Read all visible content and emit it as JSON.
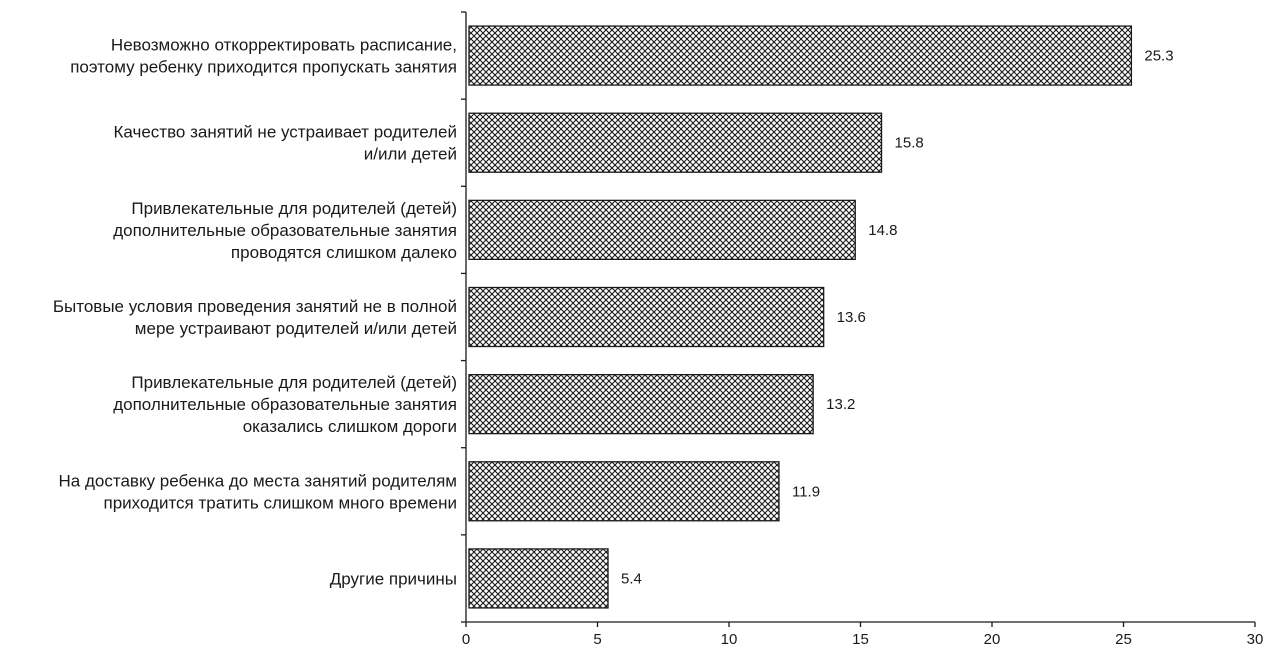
{
  "chart_data": {
    "type": "bar",
    "orientation": "horizontal",
    "categories": [
      [
        "Невозможно откорректировать расписание,",
        "поэтому ребенку приходится пропускать занятия"
      ],
      [
        "Качество занятий не устраивает родителей",
        "и/или детей"
      ],
      [
        "Привлекательные для родителей (детей)",
        "дополнительные образовательные занятия",
        "проводятся слишком далеко"
      ],
      [
        "Бытовые условия проведения занятий не в полной",
        "мере устраивают родителей и/или детей"
      ],
      [
        "Привлекательные для родителей (детей)",
        "дополнительные образовательные занятия",
        "оказались слишком дороги"
      ],
      [
        "На доставку ребенка до места занятий родителям",
        "приходится тратить слишком много времени"
      ],
      [
        "Другие причины"
      ]
    ],
    "values": [
      25.3,
      15.8,
      14.8,
      13.6,
      13.2,
      11.9,
      5.4
    ],
    "value_labels": [
      "25.3",
      "15.8",
      "14.8",
      "13.6",
      "13.2",
      "11.9",
      "5.4"
    ],
    "xlim": [
      0,
      30
    ],
    "x_ticks": [
      "0",
      "5",
      "10",
      "15",
      "20",
      "25",
      "30"
    ],
    "grid": false,
    "bar_fill": "crosshatch",
    "bar_stroke": "#1a1a1a"
  }
}
